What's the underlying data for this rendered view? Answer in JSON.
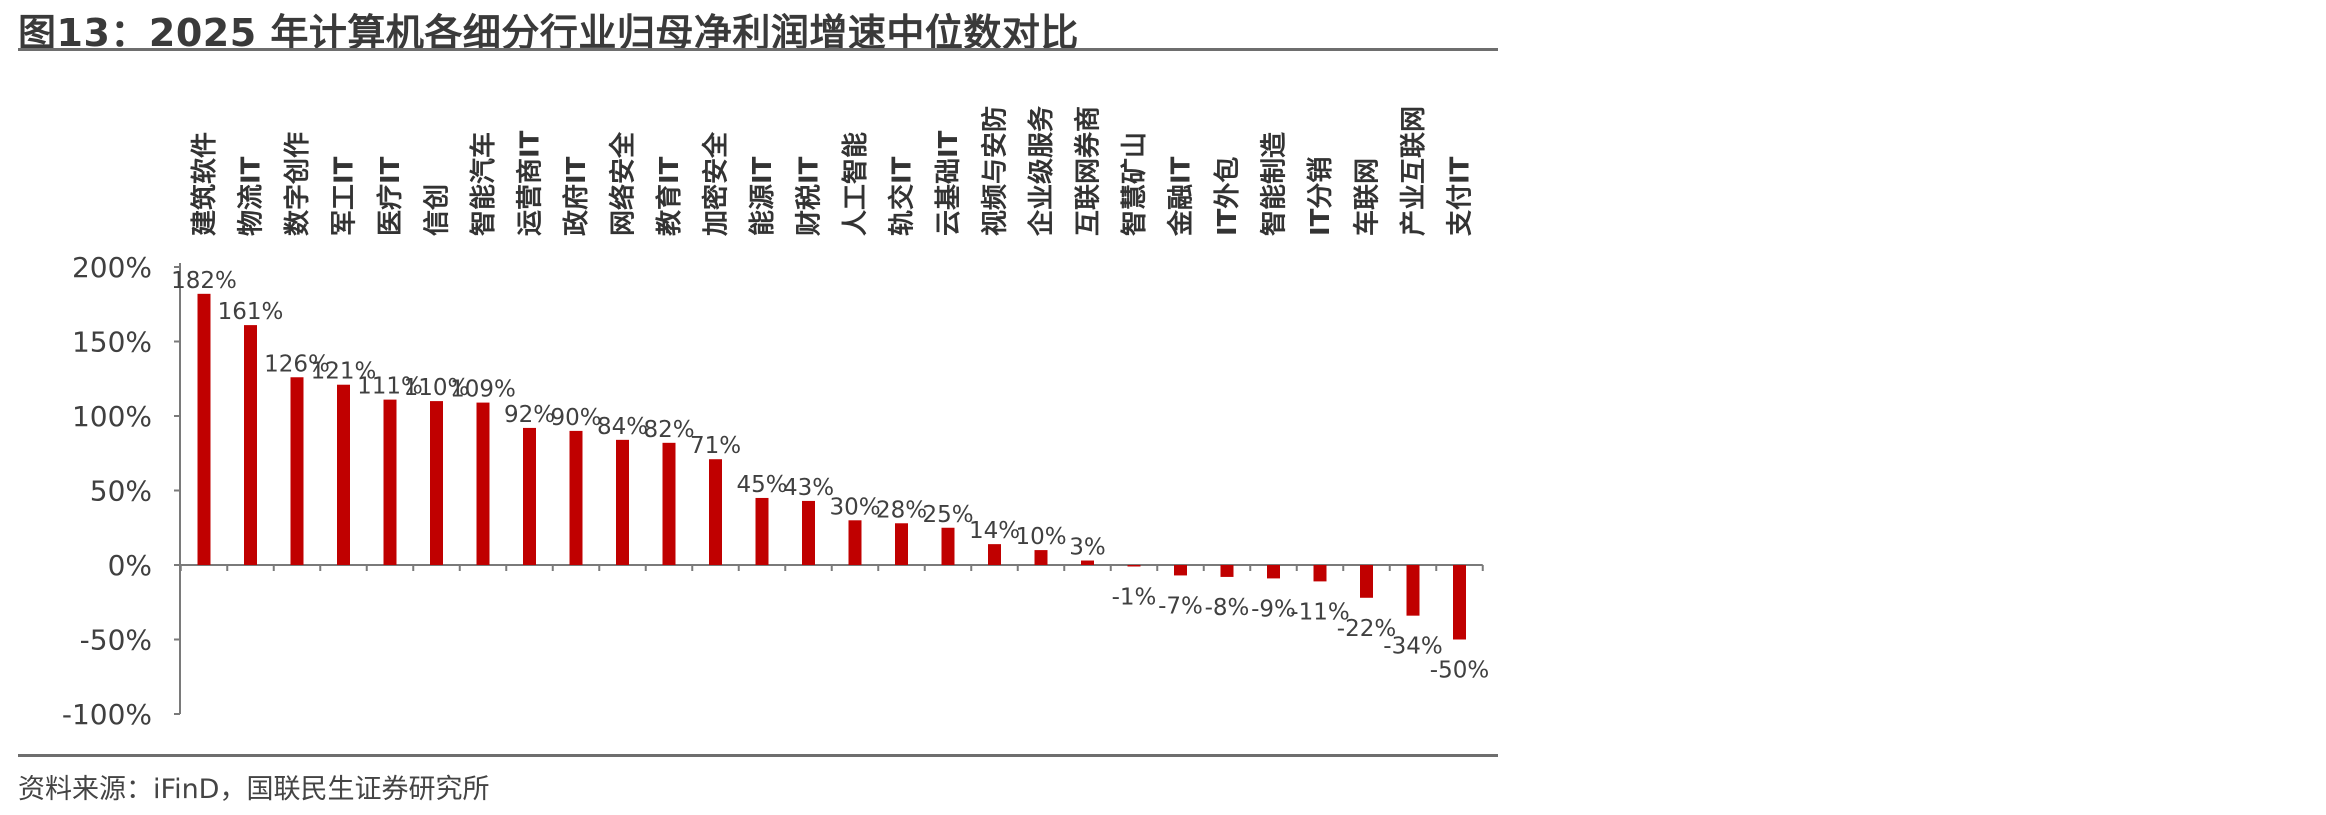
{
  "chart_data": {
    "type": "bar",
    "title": "图13：2025 年计算机各细分行业归母净利润增速中位数对比",
    "source": "资料来源：iFinD，国联民生证券研究所",
    "categories": [
      "建筑软件",
      "物流IT",
      "数字创作",
      "军工IT",
      "医疗IT",
      "信创",
      "智能汽车",
      "运营商IT",
      "政府IT",
      "网络安全",
      "教育IT",
      "加密安全",
      "能源IT",
      "财税IT",
      "人工智能",
      "轨交IT",
      "云基础IT",
      "视频与安防",
      "企业级服务",
      "互联网券商",
      "智慧矿山",
      "金融IT",
      "IT外包",
      "智能制造",
      "IT分销",
      "车联网",
      "产业互联网",
      "支付IT"
    ],
    "values": [
      182,
      161,
      126,
      121,
      111,
      110,
      109,
      92,
      90,
      84,
      82,
      71,
      45,
      43,
      30,
      28,
      25,
      14,
      10,
      3,
      -1,
      -7,
      -8,
      -9,
      -11,
      -22,
      -34,
      -50
    ],
    "data_labels": [
      "182%",
      "161%",
      "126%",
      "121%",
      "111%",
      "110%",
      "109%",
      "92%",
      "90%",
      "84%",
      "82%",
      "71%",
      "45%",
      "43%",
      "30%",
      "28%",
      "25%",
      "14%",
      "10%",
      "3%",
      "-1%",
      "-7%",
      "-8%",
      "-9%",
      "-11%",
      "-22%",
      "-34%",
      "-50%"
    ],
    "ylim": [
      -100,
      200
    ],
    "yticks": [
      200,
      150,
      100,
      50,
      0,
      -50,
      -100
    ],
    "ytick_labels": [
      "200%",
      "150%",
      "100%",
      "50%",
      "0%",
      "-50%",
      "-100%"
    ],
    "bar_color": "#c00000",
    "grid": false,
    "legend": "none"
  }
}
